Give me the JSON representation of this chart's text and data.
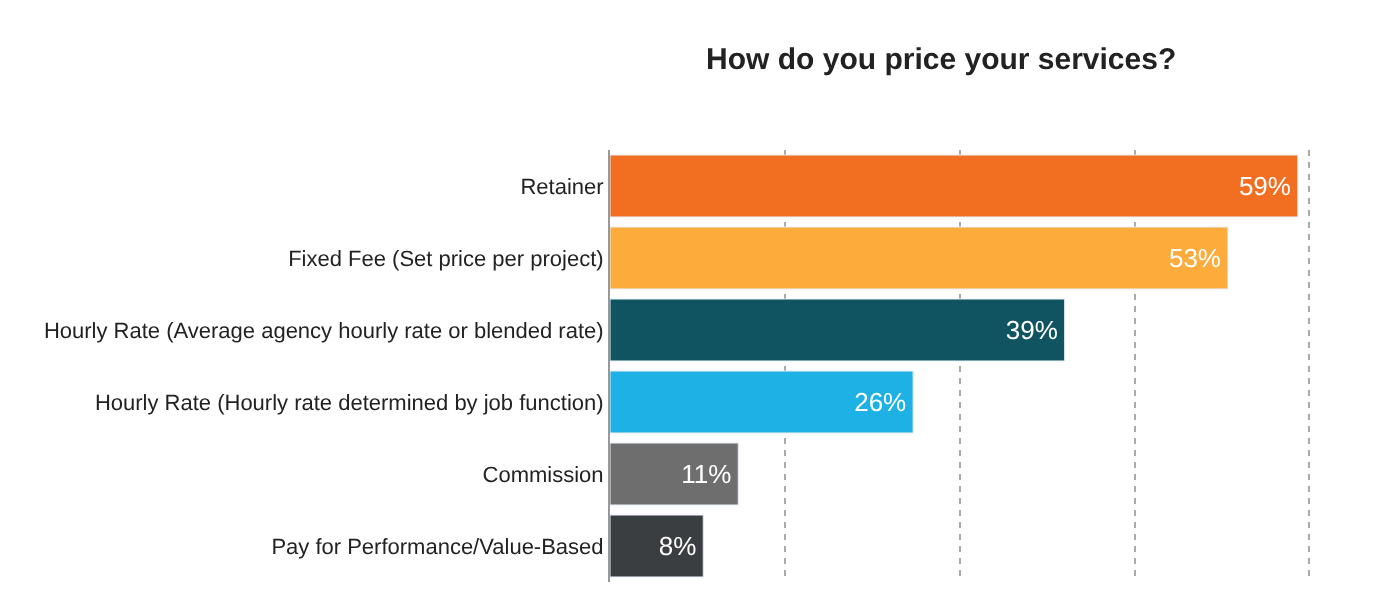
{
  "chart_data": {
    "type": "bar",
    "orientation": "horizontal",
    "title": "How do you price your services?",
    "categories": [
      "Retainer",
      "Fixed Fee (Set price per project)",
      "Hourly Rate (Average agency hourly rate or blended rate)",
      "Hourly Rate (Hourly rate determined by job function)",
      "Commission",
      "Pay for Performance/Value-Based"
    ],
    "values": [
      59,
      53,
      39,
      26,
      11,
      8
    ],
    "value_labels": [
      "59%",
      "53%",
      "39%",
      "26%",
      "11%",
      "8%"
    ],
    "colors": [
      "#f26f21",
      "#fdab3b",
      "#0f5460",
      "#1eb1e6",
      "#6e6e6e",
      "#3b3e40"
    ],
    "xticks": [
      {
        "value": 0,
        "label": null
      },
      {
        "value": 15,
        "label": null
      },
      {
        "value": 30,
        "label": null
      },
      {
        "value": 45,
        "label": null
      },
      {
        "value": 60,
        "label": null
      }
    ],
    "grid": "x",
    "tick_labels": "y",
    "legend": false
  }
}
